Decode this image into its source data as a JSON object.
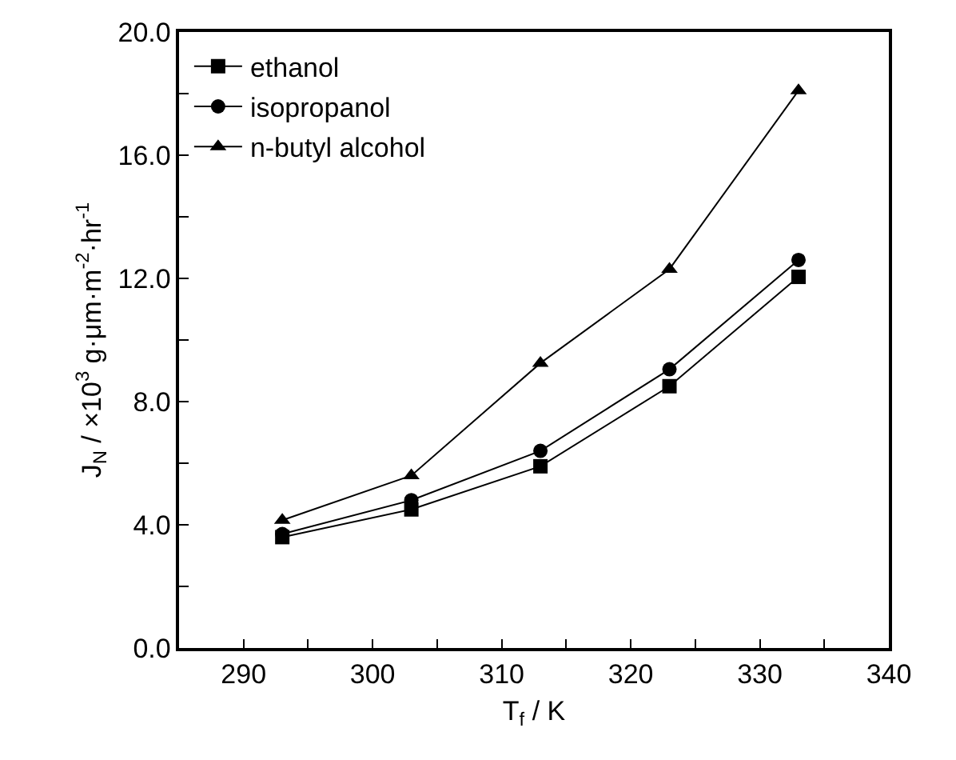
{
  "chart_data": {
    "type": "line",
    "xlabel": "T$_{f}$ / K",
    "ylabel": "J$_{N}$ / ×10$^{3}$ g·μm·m$^{-2}$·hr$^{-1}$",
    "x": [
      293,
      303,
      313,
      323,
      333
    ],
    "series": [
      {
        "name": "ethanol",
        "color": "#000000",
        "marker": "square",
        "values": [
          3.6,
          4.5,
          5.9,
          8.5,
          12.05
        ]
      },
      {
        "name": "isopropanol",
        "color": "#000000",
        "marker": "circle",
        "values": [
          3.7,
          4.8,
          6.4,
          9.05,
          12.6
        ]
      },
      {
        "name": "n-butyl alcohol",
        "color": "#000000",
        "marker": "triangle",
        "values": [
          4.15,
          5.6,
          9.25,
          12.3,
          18.1
        ]
      }
    ],
    "xlim": [
      285,
      340
    ],
    "xticks": [
      290,
      {
        "value": 295,
        "label": null
      },
      300,
      {
        "value": 305,
        "label": null
      },
      310,
      {
        "value": 315,
        "label": null
      },
      320,
      {
        "value": 325,
        "label": null
      },
      330,
      {
        "value": 335,
        "label": null
      },
      340
    ],
    "ylim": [
      0,
      20
    ],
    "yticks": [
      {
        "value": 0,
        "label": "0.0"
      },
      {
        "value": 2,
        "label": null
      },
      {
        "value": 4,
        "label": "4.0"
      },
      {
        "value": 6,
        "label": null
      },
      {
        "value": 8,
        "label": "8.0"
      },
      {
        "value": 10,
        "label": null
      },
      {
        "value": 12,
        "label": "12.0"
      },
      {
        "value": 14,
        "label": null
      },
      {
        "value": 16,
        "label": "16.0"
      },
      {
        "value": 18,
        "label": null
      },
      {
        "value": 20,
        "label": "20.0"
      }
    ],
    "grid": false,
    "legend": "top left",
    "line_style": "solid"
  }
}
